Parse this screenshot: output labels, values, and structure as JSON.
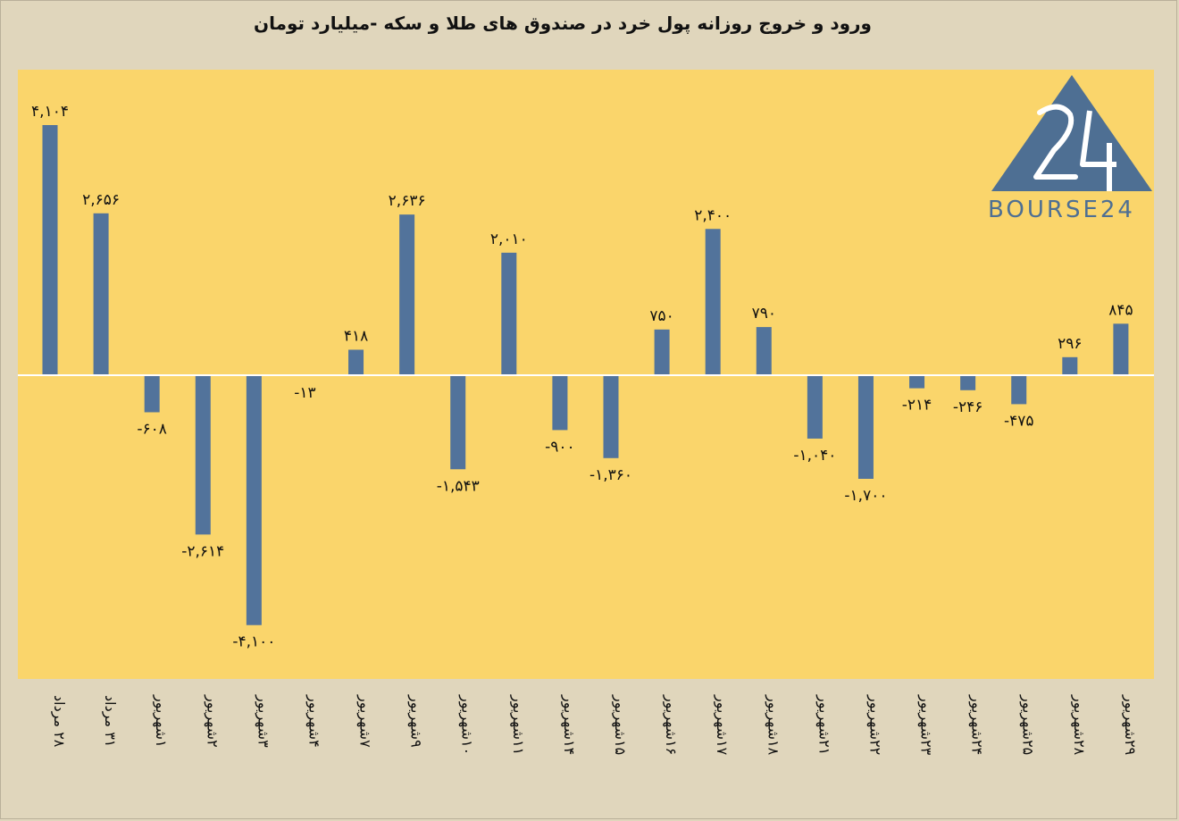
{
  "chart_data": {
    "type": "bar",
    "title": "ورود و خروج روزانه پول خرد در صندوق های طلا و سکه -میلیارد تومان",
    "categories": [
      "۲۸ مرداد",
      "۳۱ مرداد",
      "۱شهریور",
      "۲شهریور",
      "۳شهریور",
      "۴شهریور",
      "۷شهریور",
      "۹شهریور",
      "۱۰شهریور",
      "۱۱شهریور",
      "۱۴شهریور",
      "۱۵شهریور",
      "۱۶شهریور",
      "۱۷شهریور",
      "۱۸شهریور",
      "۲۱شهریور",
      "۲۲شهریور",
      "۲۳شهریور",
      "۲۴شهریور",
      "۲۵شهریور",
      "۲۸شهریور",
      "۲۹شهریور"
    ],
    "values": [
      4104,
      2656,
      -608,
      -2614,
      -4100,
      -13,
      418,
      2636,
      -1543,
      2010,
      -900,
      -1360,
      750,
      2400,
      790,
      -1040,
      -1700,
      -214,
      -246,
      -475,
      296,
      845
    ],
    "value_labels": [
      "۴,۱۰۴",
      "۲,۶۵۶",
      "-۶۰۸",
      "-۲,۶۱۴",
      "-۴,۱۰۰",
      "-۱۳",
      "۴۱۸",
      "۲,۶۳۶",
      "-۱,۵۴۳",
      "۲,۰۱۰",
      "-۹۰۰",
      "-۱,۳۶۰",
      "۷۵۰",
      "۲,۴۰۰",
      "۷۹۰",
      "-۱,۰۴۰",
      "-۱,۷۰۰",
      "-۲۱۴",
      "-۲۴۶",
      "-۴۷۵",
      "۲۹۶",
      "۸۴۵"
    ],
    "ylim": [
      -4900,
      5000
    ],
    "grid": false,
    "legend": "none",
    "colors": {
      "bar": "#52739b",
      "plot_background": "#fad56b",
      "page_background": "#e0d6bc",
      "zero_line": "#ffffff"
    }
  },
  "logo": {
    "text": "BOURSE24",
    "number": "24",
    "color": "#4e6f93"
  }
}
